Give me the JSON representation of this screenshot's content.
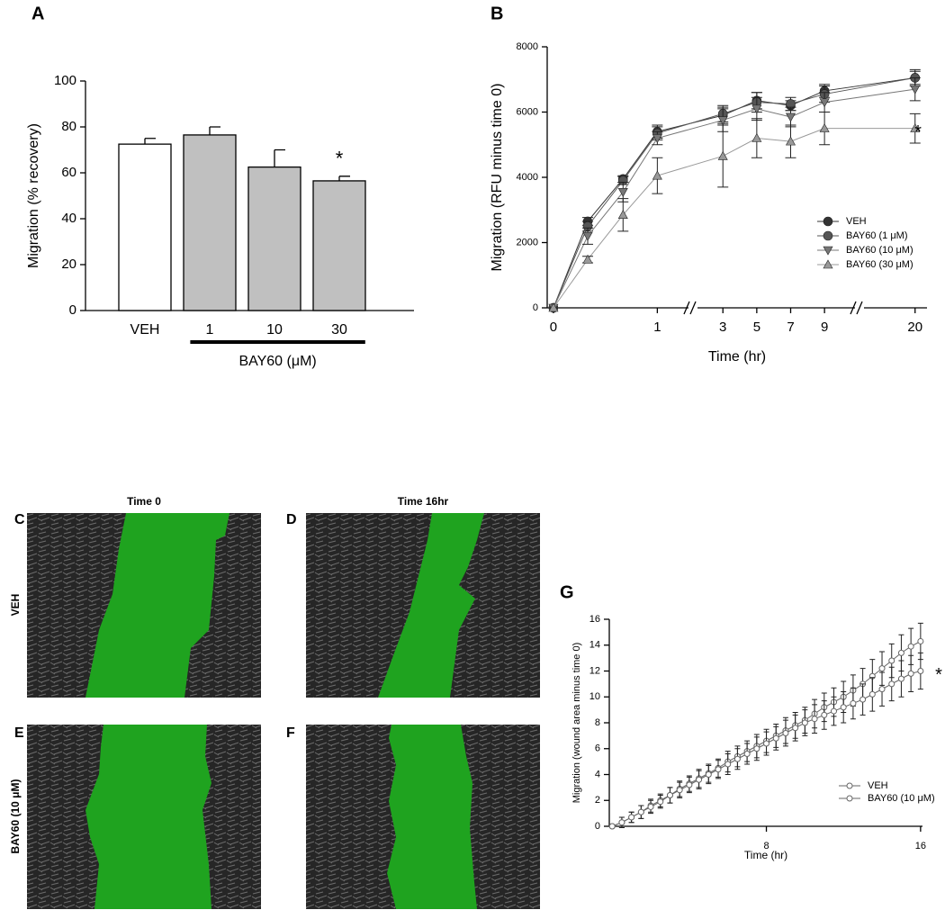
{
  "chart_data": [
    {
      "type": "bar",
      "panel": "A",
      "ylabel": "Migration (% recovery)",
      "group_label": "BAY60 (μM)",
      "categories": [
        "VEH",
        "1",
        "10",
        "30"
      ],
      "values": [
        72.5,
        76.5,
        62.5,
        56.5
      ],
      "errors": [
        2.5,
        3.5,
        7.5,
        2
      ],
      "colors": [
        "#ffffff",
        "#c0c0c0",
        "#c0c0c0",
        "#c0c0c0"
      ],
      "annotation": "*",
      "ylim": [
        0,
        100
      ],
      "yticks": [
        0,
        20,
        40,
        60,
        80,
        100
      ]
    },
    {
      "type": "line",
      "panel": "B",
      "xlabel": "Time (hr)",
      "ylabel": "Migration (RFU minus time 0)",
      "annotation": "*",
      "x": [
        0,
        0.33,
        0.67,
        1,
        3,
        5,
        7,
        9,
        20
      ],
      "series": [
        {
          "name": "VEH",
          "color": "#333333",
          "marker": "circle",
          "values": [
            0,
            2650,
            3950,
            5400,
            5900,
            6350,
            6200,
            6650,
            7050
          ],
          "errors": [
            0,
            120,
            100,
            200,
            250,
            250,
            150,
            200,
            200
          ]
        },
        {
          "name": "BAY60 (1 μM)",
          "color": "#555555",
          "marker": "circle",
          "values": [
            0,
            2500,
            3900,
            5350,
            5950,
            6300,
            6250,
            6550,
            7050
          ],
          "errors": [
            0,
            150,
            120,
            200,
            250,
            300,
            200,
            250,
            250
          ]
        },
        {
          "name": "BAY60 (10 μM)",
          "color": "#777777",
          "marker": "triangle-down",
          "values": [
            0,
            2200,
            3550,
            5200,
            5750,
            6100,
            5850,
            6300,
            6700
          ],
          "errors": [
            0,
            250,
            300,
            200,
            350,
            350,
            300,
            300,
            350
          ]
        },
        {
          "name": "BAY60 (30 μM)",
          "color": "#999999",
          "marker": "triangle-up",
          "values": [
            0,
            1480,
            2850,
            4050,
            4650,
            5200,
            5100,
            5500,
            5500
          ],
          "errors": [
            0,
            100,
            500,
            550,
            950,
            600,
            500,
            500,
            450
          ]
        }
      ],
      "xlim": [
        [
          -0.06,
          1.3
        ],
        [
          1.5,
          10.8
        ],
        [
          17,
          20.7
        ]
      ],
      "xticks": [
        0,
        1,
        3,
        5,
        7,
        9,
        20
      ],
      "ylim": [
        0,
        8000
      ],
      "yticks": [
        0,
        2000,
        4000,
        6000,
        8000
      ]
    },
    {
      "type": "line",
      "panel": "G",
      "xlabel": "Time (hr)",
      "ylabel": "Migration (wound area minus time 0)",
      "annotation": "*",
      "x": [
        0,
        0.5,
        1,
        1.5,
        2,
        2.5,
        3,
        3.5,
        4,
        4.5,
        5,
        5.5,
        6,
        6.5,
        7,
        7.5,
        8,
        8.5,
        9,
        9.5,
        10,
        10.5,
        11,
        11.5,
        12,
        12.5,
        13,
        13.5,
        14,
        14.5,
        15,
        15.5,
        16
      ],
      "series": [
        {
          "name": "VEH",
          "color": "#666666",
          "marker": "open-circle",
          "values": [
            0,
            0.3,
            0.7,
            1.1,
            1.6,
            2.0,
            2.4,
            2.9,
            3.3,
            3.7,
            4.1,
            4.5,
            5.0,
            5.4,
            5.8,
            6.2,
            6.6,
            7.0,
            7.4,
            7.8,
            8.2,
            8.7,
            9.2,
            9.6,
            10.0,
            10.5,
            11.0,
            11.6,
            12.2,
            12.8,
            13.4,
            13.9,
            14.3
          ],
          "errors": [
            0,
            0.4,
            0.4,
            0.5,
            0.5,
            0.5,
            0.6,
            0.6,
            0.6,
            0.7,
            0.7,
            0.7,
            0.8,
            0.8,
            0.8,
            0.9,
            0.9,
            0.9,
            1.0,
            1.0,
            1.0,
            1.1,
            1.1,
            1.1,
            1.2,
            1.2,
            1.2,
            1.3,
            1.3,
            1.3,
            1.4,
            1.4,
            1.4
          ]
        },
        {
          "name": "BAY60 (10 μM)",
          "color": "#666666",
          "marker": "open-circle",
          "values": [
            0,
            0.3,
            0.7,
            1.1,
            1.5,
            1.9,
            2.4,
            2.8,
            3.2,
            3.6,
            4.0,
            4.4,
            4.8,
            5.2,
            5.6,
            6.0,
            6.4,
            6.8,
            7.2,
            7.6,
            8.0,
            8.3,
            8.6,
            8.9,
            9.2,
            9.5,
            9.8,
            10.2,
            10.6,
            11.0,
            11.4,
            11.8,
            12.0
          ],
          "errors": [
            0,
            0.4,
            0.4,
            0.5,
            0.5,
            0.5,
            0.6,
            0.6,
            0.6,
            0.7,
            0.7,
            0.7,
            0.8,
            0.8,
            0.8,
            0.9,
            0.9,
            0.9,
            1.0,
            1.0,
            1.0,
            1.1,
            1.1,
            1.1,
            1.2,
            1.2,
            1.2,
            1.3,
            1.3,
            1.3,
            1.4,
            1.4,
            1.4
          ]
        }
      ],
      "xlim": [
        -0.15,
        16.1
      ],
      "xticks": [
        8,
        16
      ],
      "ylim": [
        0,
        16
      ],
      "yticks": [
        0,
        2,
        4,
        6,
        8,
        10,
        12,
        14,
        16
      ]
    }
  ],
  "image_panels": {
    "labels": [
      "C",
      "D",
      "E",
      "F"
    ],
    "columns": [
      "Time 0",
      "Time 16hr"
    ],
    "rows": [
      "VEH",
      "BAY60 (10 μM)"
    ]
  }
}
